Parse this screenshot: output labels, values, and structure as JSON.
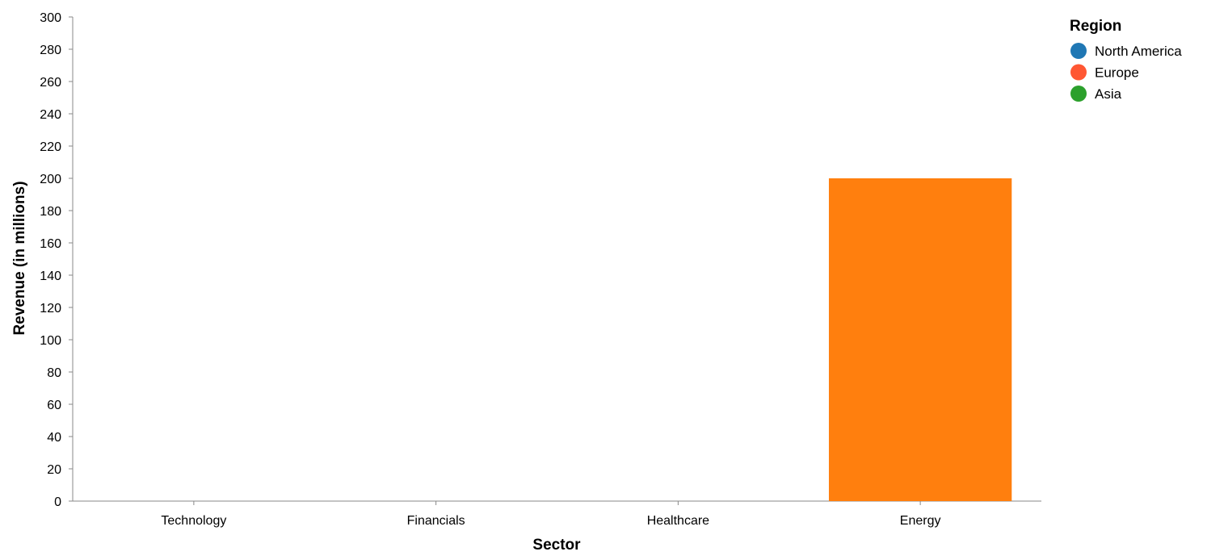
{
  "chart_data": {
    "type": "bar",
    "title": "",
    "xlabel": "Sector",
    "ylabel": "Revenue (in millions)",
    "categories": [
      "Technology",
      "Financials",
      "Healthcare",
      "Energy"
    ],
    "ylim": [
      0,
      300
    ],
    "yticks": [
      0,
      20,
      40,
      60,
      80,
      100,
      120,
      140,
      160,
      180,
      200,
      220,
      240,
      260,
      280,
      300
    ],
    "grid": false,
    "legend": {
      "title": "Region",
      "placement": "top-right",
      "entries": [
        {
          "name": "North America",
          "color": "#1f77b4"
        },
        {
          "name": "Europe",
          "color": "#ff5733"
        },
        {
          "name": "Asia",
          "color": "#2ca02c"
        }
      ]
    },
    "bars": [
      {
        "category": "Energy",
        "value": 200,
        "color": "#ff7f0e"
      }
    ]
  }
}
